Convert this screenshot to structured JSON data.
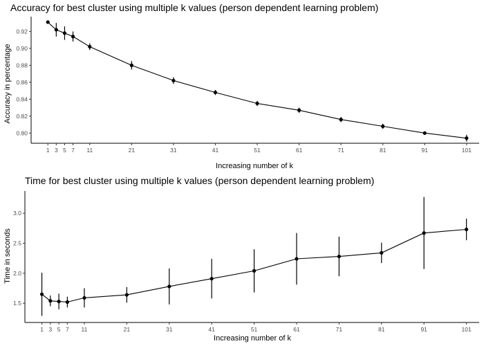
{
  "chart_data": [
    {
      "type": "line",
      "title": "Accuracy for best cluster using multiple k values (person dependent learning problem)",
      "xlabel": "Increasing number of k",
      "ylabel": "Accuracy in percentage",
      "x": [
        1,
        3,
        5,
        7,
        11,
        21,
        31,
        41,
        51,
        61,
        71,
        81,
        91,
        101
      ],
      "y": [
        0.931,
        0.922,
        0.918,
        0.914,
        0.902,
        0.88,
        0.862,
        0.848,
        0.835,
        0.827,
        0.816,
        0.808,
        0.8,
        0.794
      ],
      "error": [
        0.0,
        0.008,
        0.008,
        0.006,
        0.004,
        0.005,
        0.004,
        0.003,
        0.003,
        0.003,
        0.003,
        0.003,
        0.002,
        0.004
      ],
      "xticks": [
        "1",
        "3",
        "5",
        "7",
        "11",
        "21",
        "31",
        "41",
        "51",
        "61",
        "71",
        "81",
        "91",
        "101"
      ],
      "yticks": [
        0.8,
        0.82,
        0.84,
        0.86,
        0.88,
        0.9,
        0.92
      ],
      "ytick_labels": [
        "0.80",
        "0.82",
        "0.84",
        "0.86",
        "0.88",
        "0.90",
        "0.92"
      ],
      "xlim": [
        -3,
        104
      ],
      "ylim": [
        0.788,
        0.9375
      ],
      "grid": false
    },
    {
      "type": "line",
      "title": "Time for best cluster using multiple k values (person dependent learning problem)",
      "xlabel": "Increasing number of k",
      "ylabel": "Time in seconds",
      "x": [
        1,
        3,
        5,
        7,
        11,
        21,
        31,
        41,
        51,
        61,
        71,
        81,
        91,
        101
      ],
      "y": [
        1.65,
        1.54,
        1.53,
        1.52,
        1.59,
        1.64,
        1.78,
        1.91,
        2.04,
        2.24,
        2.28,
        2.34,
        2.67,
        2.73
      ],
      "error": [
        0.36,
        0.09,
        0.13,
        0.09,
        0.16,
        0.13,
        0.3,
        0.33,
        0.36,
        0.43,
        0.33,
        0.17,
        0.6,
        0.18
      ],
      "xticks": [
        "1",
        "3",
        "5",
        "7",
        "11",
        "21",
        "31",
        "41",
        "51",
        "61",
        "71",
        "81",
        "91",
        "101"
      ],
      "yticks": [
        1.5,
        2.0,
        2.5,
        3.0
      ],
      "ytick_labels": [
        "1.5",
        "2.0",
        "2.5",
        "3.0"
      ],
      "xlim": [
        -3,
        104
      ],
      "ylim": [
        1.18,
        3.37
      ],
      "grid": false
    }
  ]
}
